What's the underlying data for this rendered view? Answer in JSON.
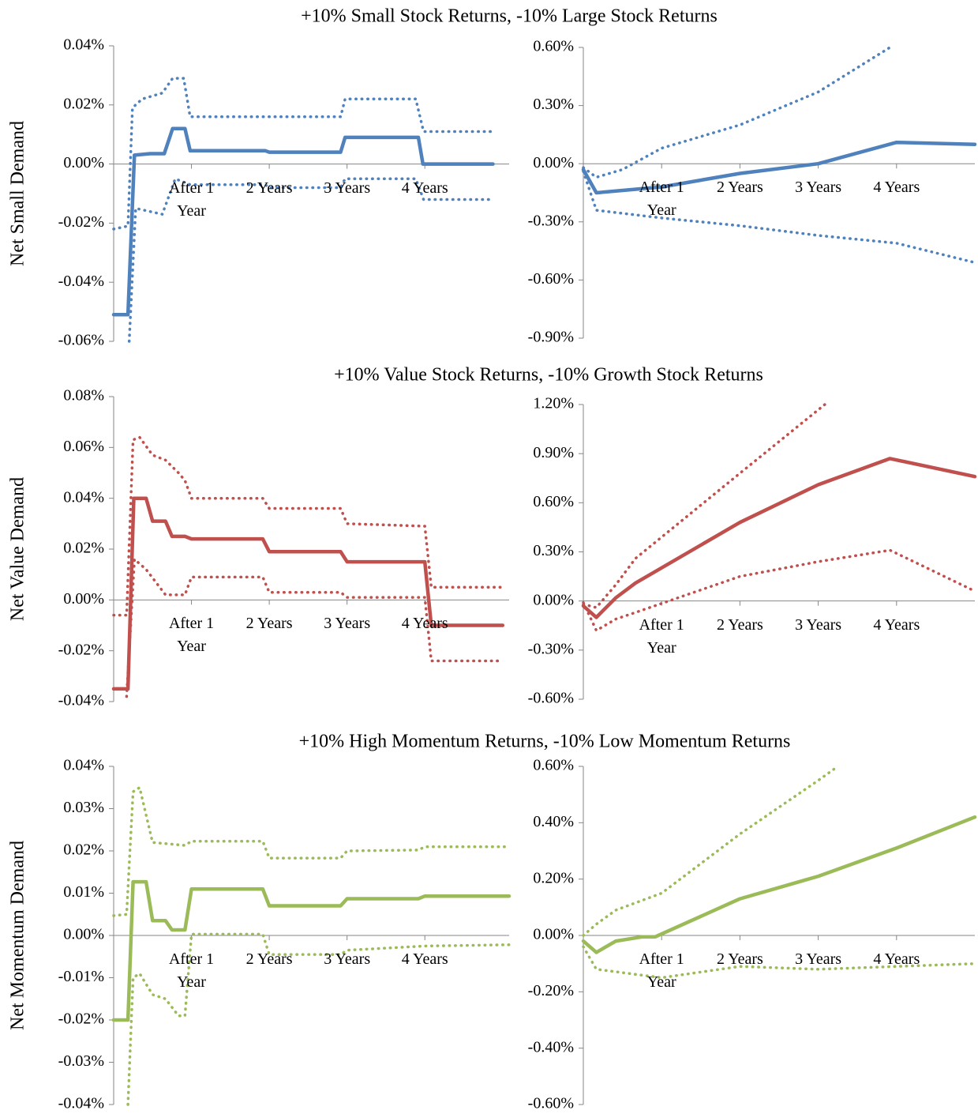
{
  "chart_data": [
    {
      "type": "line",
      "title": "+10% Small Stock Returns, -10% Large Stock Returns",
      "ylabel": "Net Small Demand",
      "xlim": [
        0,
        61
      ],
      "xticks": [
        {
          "value": 12,
          "label": "After 1 Year"
        },
        {
          "value": 24,
          "label": "2 Years"
        },
        {
          "value": 36,
          "label": "3 Years"
        },
        {
          "value": 48,
          "label": "4 Years"
        }
      ],
      "ylim": [
        -0.06,
        0.04
      ],
      "yticks": [
        {
          "value": -0.06,
          "label": "-0.06%"
        },
        {
          "value": -0.04,
          "label": "-0.04%"
        },
        {
          "value": -0.02,
          "label": "-0.02%"
        },
        {
          "value": 0,
          "label": "0.00%"
        },
        {
          "value": 0.02,
          "label": "0.02%"
        },
        {
          "value": 0.04,
          "label": "0.04%"
        }
      ],
      "series": [
        {
          "color": "#4f81bd",
          "style": "solid",
          "x": [
            0,
            2.2,
            3.2,
            5.6,
            7.8,
            9.1,
            11,
            11.8,
            23.4,
            24,
            35,
            35.7,
            47,
            47.7,
            58.5
          ],
          "values": [
            -0.051,
            -0.051,
            0.003,
            0.0035,
            0.0035,
            0.012,
            0.012,
            0.0045,
            0.0045,
            0.004,
            0.004,
            0.009,
            0.009,
            0,
            0
          ]
        },
        {
          "color": "#4f81bd",
          "style": "dotted",
          "x": [
            0,
            2.2,
            2.9,
            4.4,
            7.5,
            9.1,
            10.8,
            11.8,
            23.4,
            35,
            35.7,
            46.6,
            47.8,
            58.5
          ],
          "values": [
            -0.022,
            -0.021,
            0.019,
            0.022,
            0.024,
            0.029,
            0.029,
            0.016,
            0.016,
            0.016,
            0.022,
            0.022,
            0.011,
            0.011
          ]
        },
        {
          "color": "#4f81bd",
          "style": "dotted",
          "x": [
            2.4,
            3.4,
            7.5,
            9.5,
            11.8,
            23.4,
            24,
            35,
            35.7,
            46.6,
            47.8,
            58.5
          ],
          "values": [
            -0.06,
            -0.015,
            -0.017,
            -0.005,
            -0.007,
            -0.007,
            -0.008,
            -0.008,
            -0.005,
            -0.005,
            -0.012,
            -0.012
          ]
        }
      ]
    },
    {
      "type": "line",
      "xlim": [
        0,
        60
      ],
      "xticks": [
        {
          "value": 12,
          "label": "After 1 Year"
        },
        {
          "value": 24,
          "label": "2 Years"
        },
        {
          "value": 36,
          "label": "3 Years"
        },
        {
          "value": 48,
          "label": "4 Years"
        }
      ],
      "ylim": [
        -0.9,
        0.6
      ],
      "yticks": [
        {
          "value": -0.9,
          "label": "-0.90%"
        },
        {
          "value": -0.6,
          "label": "-0.60%"
        },
        {
          "value": -0.3,
          "label": "-0.30%"
        },
        {
          "value": 0,
          "label": "0.00%"
        },
        {
          "value": 0.3,
          "label": "0.30%"
        },
        {
          "value": 0.6,
          "label": "0.60%"
        }
      ],
      "series": [
        {
          "color": "#4f81bd",
          "style": "solid",
          "x": [
            0,
            2,
            12,
            24,
            36,
            48,
            60
          ],
          "values": [
            -0.03,
            -0.15,
            -0.12,
            -0.05,
            0,
            0.11,
            0.1
          ]
        },
        {
          "color": "#4f81bd",
          "style": "dotted",
          "x": [
            0,
            2,
            6,
            12,
            24,
            36,
            47
          ],
          "values": [
            -0.02,
            -0.07,
            -0.03,
            0.08,
            0.2,
            0.37,
            0.6
          ]
        },
        {
          "color": "#4f81bd",
          "style": "dotted",
          "x": [
            0,
            2,
            12,
            24,
            36,
            48,
            60
          ],
          "values": [
            -0.04,
            -0.24,
            -0.28,
            -0.32,
            -0.37,
            -0.41,
            -0.51
          ]
        }
      ]
    },
    {
      "type": "line",
      "title": "+10% Value Stock Returns, -10% Growth Stock Returns",
      "ylabel": "Net Value Demand",
      "xlim": [
        0,
        61
      ],
      "xticks": [
        {
          "value": 12,
          "label": "After 1 Year"
        },
        {
          "value": 24,
          "label": "2 Years"
        },
        {
          "value": 36,
          "label": "3 Years"
        },
        {
          "value": 48,
          "label": "4 Years"
        }
      ],
      "ylim": [
        -0.04,
        0.08
      ],
      "yticks": [
        {
          "value": -0.04,
          "label": "-0.04%"
        },
        {
          "value": -0.02,
          "label": "-0.02%"
        },
        {
          "value": 0,
          "label": "0.00%"
        },
        {
          "value": 0.02,
          "label": "0.02%"
        },
        {
          "value": 0.04,
          "label": "0.04%"
        },
        {
          "value": 0.06,
          "label": "0.06%"
        },
        {
          "value": 0.08,
          "label": "0.08%"
        }
      ],
      "series": [
        {
          "color": "#c0504d",
          "style": "solid",
          "x": [
            0,
            2.2,
            3.1,
            5,
            6,
            8,
            9,
            11,
            12,
            23,
            24,
            35,
            36,
            48,
            49,
            60
          ],
          "values": [
            -0.035,
            -0.035,
            0.04,
            0.04,
            0.031,
            0.031,
            0.025,
            0.025,
            0.024,
            0.024,
            0.019,
            0.019,
            0.015,
            0.015,
            -0.01,
            -0.01
          ]
        },
        {
          "color": "#c0504d",
          "style": "dotted",
          "x": [
            0,
            2,
            3,
            4,
            6,
            8,
            10,
            11,
            12,
            23,
            24,
            35,
            36,
            48,
            49,
            60
          ],
          "values": [
            -0.006,
            -0.006,
            0.063,
            0.064,
            0.057,
            0.055,
            0.05,
            0.047,
            0.04,
            0.04,
            0.036,
            0.036,
            0.03,
            0.029,
            0.005,
            0.005
          ]
        },
        {
          "color": "#c0504d",
          "style": "dotted",
          "x": [
            2,
            3.2,
            5,
            8,
            11,
            12,
            23,
            24,
            35,
            36,
            48,
            49,
            60
          ],
          "values": [
            -0.038,
            0.016,
            0.012,
            0.002,
            0.002,
            0.009,
            0.009,
            0.003,
            0.003,
            0.001,
            0.001,
            -0.024,
            -0.024
          ]
        }
      ]
    },
    {
      "type": "line",
      "xlim": [
        0,
        60
      ],
      "xticks": [
        {
          "value": 12,
          "label": "After 1 Year"
        },
        {
          "value": 24,
          "label": "2 Years"
        },
        {
          "value": 36,
          "label": "3 Years"
        },
        {
          "value": 48,
          "label": "4 Years"
        }
      ],
      "ylim": [
        -0.6,
        1.2
      ],
      "yticks": [
        {
          "value": -0.6,
          "label": "-0.60%"
        },
        {
          "value": -0.3,
          "label": "-0.30%"
        },
        {
          "value": 0,
          "label": "0.00%"
        },
        {
          "value": 0.3,
          "label": "0.30%"
        },
        {
          "value": 0.6,
          "label": "0.60%"
        },
        {
          "value": 0.9,
          "label": "0.90%"
        },
        {
          "value": 1.2,
          "label": "1.20%"
        }
      ],
      "series": [
        {
          "color": "#c0504d",
          "style": "solid",
          "x": [
            0,
            2,
            5,
            8,
            24,
            36,
            47,
            60
          ],
          "values": [
            -0.03,
            -0.1,
            0.02,
            0.11,
            0.48,
            0.71,
            0.87,
            0.76
          ]
        },
        {
          "color": "#c0504d",
          "style": "dotted",
          "x": [
            0,
            2,
            5,
            8,
            24,
            37
          ],
          "values": [
            -0.02,
            -0.04,
            0.1,
            0.26,
            0.78,
            1.2
          ]
        },
        {
          "color": "#c0504d",
          "style": "dotted",
          "x": [
            0,
            2,
            5,
            8,
            24,
            36,
            47,
            60
          ],
          "values": [
            -0.01,
            -0.18,
            -0.11,
            -0.07,
            0.15,
            0.24,
            0.31,
            0.06
          ]
        }
      ]
    },
    {
      "type": "line",
      "title": "+10% High Momentum Returns, -10% Low Momentum Returns",
      "ylabel": "Net Momentum Demand",
      "xlim": [
        0,
        61
      ],
      "xticks": [
        {
          "value": 12,
          "label": "After 1 Year"
        },
        {
          "value": 24,
          "label": "2 Years"
        },
        {
          "value": 36,
          "label": "3 Years"
        },
        {
          "value": 48,
          "label": "4 Years"
        }
      ],
      "ylim": [
        -0.04,
        0.04
      ],
      "yticks": [
        {
          "value": -0.04,
          "label": "-0.04%"
        },
        {
          "value": -0.03,
          "label": "-0.03%"
        },
        {
          "value": -0.02,
          "label": "-0.02%"
        },
        {
          "value": -0.01,
          "label": "-0.01%"
        },
        {
          "value": 0,
          "label": "0.00%"
        },
        {
          "value": 0.01,
          "label": "0.01%"
        },
        {
          "value": 0.02,
          "label": "0.02%"
        },
        {
          "value": 0.03,
          "label": "0.03%"
        },
        {
          "value": 0.04,
          "label": "0.04%"
        }
      ],
      "series": [
        {
          "color": "#9bbb59",
          "style": "solid",
          "x": [
            0,
            2.2,
            3,
            5,
            6,
            8,
            9,
            11,
            12,
            23,
            24,
            35,
            36,
            47,
            48,
            61
          ],
          "values": [
            -0.02,
            -0.02,
            0.0127,
            0.0127,
            0.0035,
            0.0035,
            0.0013,
            0.0013,
            0.011,
            0.011,
            0.007,
            0.007,
            0.0087,
            0.0087,
            0.0093,
            0.0093
          ]
        },
        {
          "color": "#9bbb59",
          "style": "dotted",
          "x": [
            0,
            2,
            3,
            4,
            6,
            11,
            12,
            23,
            24,
            35,
            36,
            47,
            48,
            61
          ],
          "values": [
            0.0047,
            0.005,
            0.034,
            0.035,
            0.022,
            0.0213,
            0.0223,
            0.0223,
            0.0183,
            0.0183,
            0.02,
            0.0202,
            0.021,
            0.021
          ]
        },
        {
          "color": "#9bbb59",
          "style": "dotted",
          "x": [
            2.2,
            3,
            4,
            6,
            8,
            10,
            11,
            12,
            23,
            24,
            35,
            36,
            48,
            61
          ],
          "values": [
            -0.04,
            -0.01,
            -0.009,
            -0.014,
            -0.015,
            -0.019,
            -0.019,
            0.0003,
            0.0003,
            -0.0045,
            -0.0045,
            -0.0035,
            -0.0025,
            -0.0022
          ]
        }
      ]
    },
    {
      "type": "line",
      "xlim": [
        0,
        60
      ],
      "xticks": [
        {
          "value": 12,
          "label": "After 1 Year"
        },
        {
          "value": 24,
          "label": "2 Years"
        },
        {
          "value": 36,
          "label": "3 Years"
        },
        {
          "value": 48,
          "label": "4 Years"
        }
      ],
      "ylim": [
        -0.6,
        0.6
      ],
      "yticks": [
        {
          "value": -0.6,
          "label": "-0.60%"
        },
        {
          "value": -0.4,
          "label": "-0.40%"
        },
        {
          "value": -0.2,
          "label": "-0.20%"
        },
        {
          "value": 0,
          "label": "0.00%"
        },
        {
          "value": 0.2,
          "label": "0.20%"
        },
        {
          "value": 0.4,
          "label": "0.40%"
        },
        {
          "value": 0.6,
          "label": "0.60%"
        }
      ],
      "series": [
        {
          "color": "#9bbb59",
          "style": "solid",
          "x": [
            0,
            2,
            5,
            9,
            11,
            24,
            36,
            48,
            60
          ],
          "values": [
            -0.02,
            -0.06,
            -0.02,
            -0.005,
            -0.005,
            0.13,
            0.21,
            0.31,
            0.42
          ]
        },
        {
          "color": "#9bbb59",
          "style": "dotted",
          "x": [
            0,
            2,
            5,
            12,
            24,
            36,
            39
          ],
          "values": [
            0,
            0.04,
            0.09,
            0.15,
            0.36,
            0.55,
            0.6
          ]
        },
        {
          "color": "#9bbb59",
          "style": "dotted",
          "x": [
            0,
            2,
            12,
            24,
            36,
            48,
            60
          ],
          "values": [
            -0.04,
            -0.12,
            -0.15,
            -0.11,
            -0.12,
            -0.11,
            -0.1
          ]
        }
      ]
    }
  ]
}
